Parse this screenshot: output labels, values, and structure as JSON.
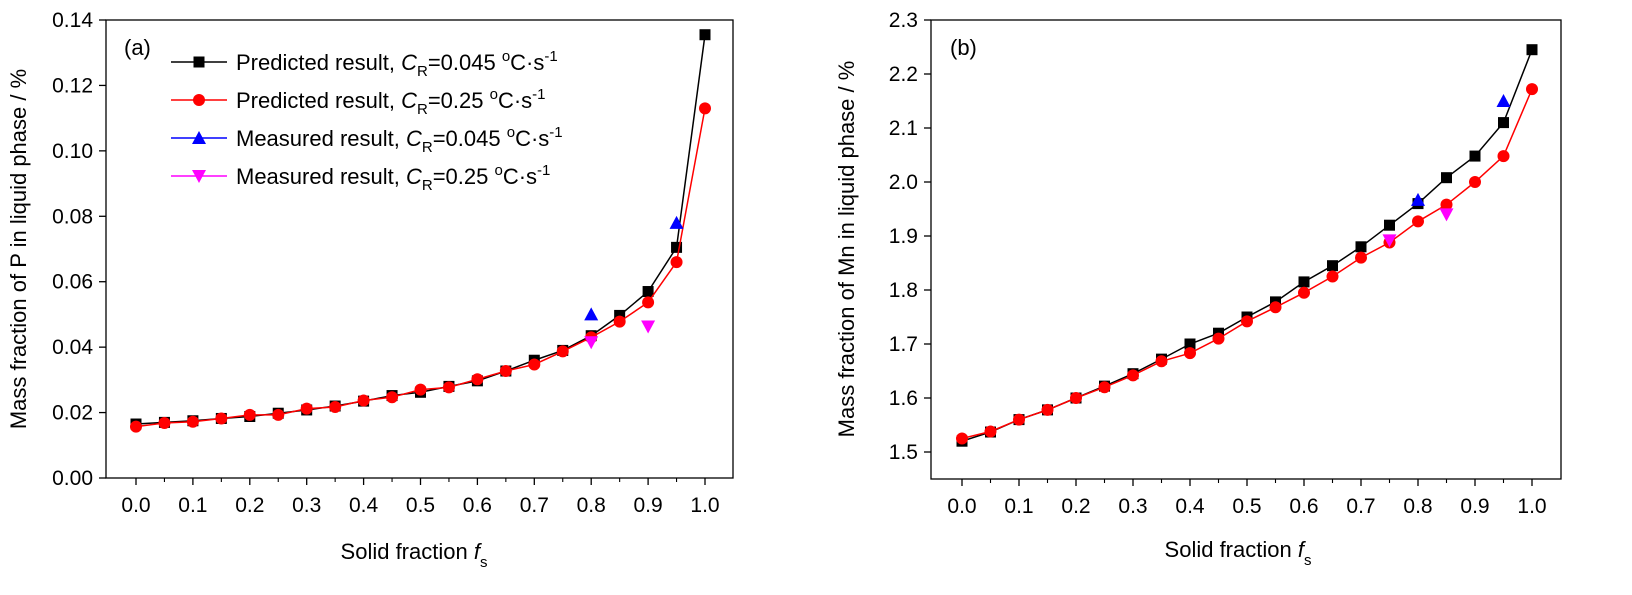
{
  "figure": {
    "panels": [
      {
        "panel_label": "(a)",
        "xlabel": {
          "text": "Solid fraction ",
          "var": "f",
          "sub": "s"
        },
        "ylabel": "Mass fraction of P in liquid phase / %",
        "legend_entries": [
          {
            "prefix": "Predicted result,  ",
            "var": "C",
            "sub": "R",
            "val": "=0.045 ",
            "deg": "o",
            "unit": "C·s",
            "exp": "-1"
          },
          {
            "prefix": "Predicted result,  ",
            "var": "C",
            "sub": "R",
            "val": "=0.25 ",
            "deg": "o",
            "unit": "C·s",
            "exp": "-1"
          },
          {
            "prefix": "Measured result,  ",
            "var": "C",
            "sub": "R",
            "val": "=0.045 ",
            "deg": "o",
            "unit": "C·s",
            "exp": "-1"
          },
          {
            "prefix": "Measured result,  ",
            "var": "C",
            "sub": "R",
            "val": "=0.25 ",
            "deg": "o",
            "unit": "C·s",
            "exp": "-1"
          }
        ]
      },
      {
        "panel_label": "(b)",
        "xlabel": {
          "text": "Solid fraction ",
          "var": "f",
          "sub": "s"
        },
        "ylabel": "Mass fraction of Mn in liquid phase / %",
        "legend_entries": []
      }
    ]
  },
  "chart_data": [
    {
      "type": "line",
      "panel": "(a)",
      "xlim": [
        -0.05,
        1.03
      ],
      "ylim": [
        0.0,
        0.14
      ],
      "xticks": [
        "0.0",
        "0.1",
        "0.2",
        "0.3",
        "0.4",
        "0.5",
        "0.6",
        "0.7",
        "0.8",
        "0.9",
        "1.0"
      ],
      "yticks": [
        "0.00",
        "0.02",
        "0.04",
        "0.06",
        "0.08",
        "0.10",
        "0.12",
        "0.14"
      ],
      "legend_position": "top-left",
      "grid": false,
      "series": [
        {
          "name": "Predicted result, CR=0.045 oC·s-1",
          "color": "#000000",
          "marker": "square",
          "line": true,
          "x": [
            0,
            0.05,
            0.1,
            0.15,
            0.2,
            0.25,
            0.3,
            0.35,
            0.4,
            0.45,
            0.5,
            0.55,
            0.6,
            0.65,
            0.7,
            0.75,
            0.8,
            0.85,
            0.9,
            0.95,
            1.0
          ],
          "y": [
            0.0165,
            0.017,
            0.0175,
            0.0182,
            0.0188,
            0.0198,
            0.0208,
            0.022,
            0.0235,
            0.0252,
            0.0262,
            0.028,
            0.0297,
            0.0327,
            0.036,
            0.039,
            0.0435,
            0.0497,
            0.057,
            0.0705,
            0.1355
          ]
        },
        {
          "name": "Predicted result, CR=0.25 oC·s-1",
          "color": "#ff0000",
          "marker": "circle",
          "line": true,
          "x": [
            0,
            0.05,
            0.1,
            0.15,
            0.2,
            0.25,
            0.3,
            0.35,
            0.4,
            0.45,
            0.5,
            0.55,
            0.6,
            0.65,
            0.7,
            0.75,
            0.8,
            0.85,
            0.9,
            0.95,
            1.0
          ],
          "y": [
            0.0157,
            0.0168,
            0.0172,
            0.0182,
            0.0193,
            0.0193,
            0.0212,
            0.0217,
            0.0237,
            0.0247,
            0.027,
            0.0277,
            0.0302,
            0.0327,
            0.0347,
            0.0387,
            0.043,
            0.0478,
            0.0537,
            0.066,
            0.113
          ]
        },
        {
          "name": "Measured result, CR=0.045 oC·s-1",
          "color": "#0000ff",
          "marker": "triangle-up",
          "line": false,
          "x": [
            0.8,
            0.95
          ],
          "y": [
            0.05,
            0.078
          ]
        },
        {
          "name": "Measured result, CR=0.25 oC·s-1",
          "color": "#ff00ff",
          "marker": "triangle-down",
          "line": false,
          "x": [
            0.8,
            0.9
          ],
          "y": [
            0.0415,
            0.0463
          ]
        }
      ]
    },
    {
      "type": "line",
      "panel": "(b)",
      "xlim": [
        -0.05,
        1.03
      ],
      "ylim": [
        1.45,
        2.3
      ],
      "xticks": [
        "0.0",
        "0.1",
        "0.2",
        "0.3",
        "0.4",
        "0.5",
        "0.6",
        "0.7",
        "0.8",
        "0.9",
        "1.0"
      ],
      "yticks": [
        "1.5",
        "1.6",
        "1.7",
        "1.8",
        "1.9",
        "2.0",
        "2.1",
        "2.2",
        "2.3"
      ],
      "grid": false,
      "series": [
        {
          "color": "#000000",
          "marker": "square",
          "line": true,
          "x": [
            0,
            0.05,
            0.1,
            0.15,
            0.2,
            0.25,
            0.3,
            0.35,
            0.4,
            0.45,
            0.5,
            0.55,
            0.6,
            0.65,
            0.7,
            0.75,
            0.8,
            0.85,
            0.9,
            0.95,
            1.0
          ],
          "y": [
            1.52,
            1.537,
            1.56,
            1.578,
            1.6,
            1.622,
            1.645,
            1.672,
            1.7,
            1.72,
            1.75,
            1.778,
            1.815,
            1.845,
            1.88,
            1.92,
            1.96,
            2.008,
            2.048,
            2.11,
            2.245
          ]
        },
        {
          "color": "#ff0000",
          "marker": "circle",
          "line": true,
          "x": [
            0,
            0.05,
            0.1,
            0.15,
            0.2,
            0.25,
            0.3,
            0.35,
            0.4,
            0.45,
            0.5,
            0.55,
            0.6,
            0.65,
            0.7,
            0.75,
            0.8,
            0.85,
            0.9,
            0.95,
            1.0
          ],
          "y": [
            1.525,
            1.538,
            1.56,
            1.578,
            1.6,
            1.62,
            1.642,
            1.668,
            1.683,
            1.71,
            1.742,
            1.768,
            1.795,
            1.825,
            1.86,
            1.888,
            1.927,
            1.958,
            2.0,
            2.048,
            2.172
          ]
        },
        {
          "color": "#0000ff",
          "marker": "triangle-up",
          "line": false,
          "x": [
            0.8,
            0.95
          ],
          "y": [
            1.967,
            2.15
          ]
        },
        {
          "color": "#ff00ff",
          "marker": "triangle-down",
          "line": false,
          "x": [
            0.75,
            0.85
          ],
          "y": [
            1.892,
            1.94
          ]
        }
      ]
    }
  ]
}
